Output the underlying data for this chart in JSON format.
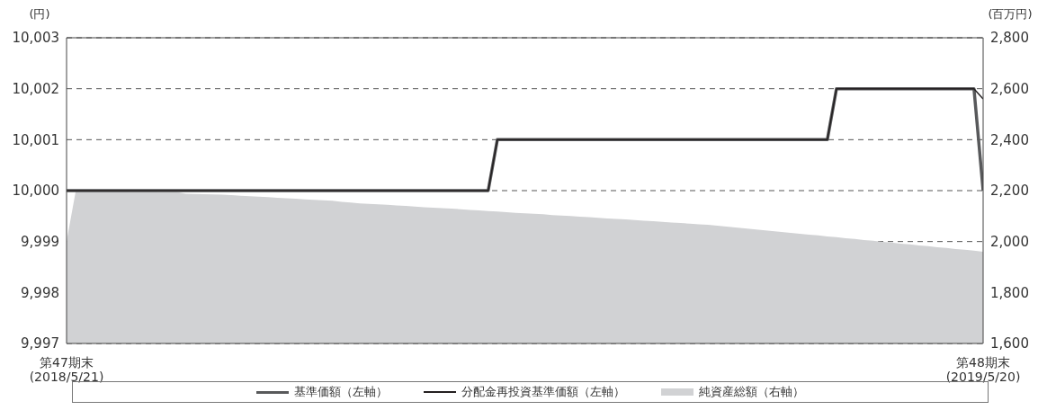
{
  "chart_data": {
    "type": "line",
    "ylabel": "(円)",
    "y2label": "(百万円)",
    "categories": [
      "第47期末\n(2018/5/21)",
      null,
      null,
      null,
      null,
      null,
      null,
      null,
      null,
      null,
      null,
      null,
      null,
      null,
      null,
      null,
      null,
      null,
      null,
      null,
      null,
      null,
      null,
      null,
      null,
      null,
      null,
      null,
      null,
      null,
      null,
      null,
      null,
      null,
      null,
      null,
      null,
      null,
      null,
      null,
      null,
      null,
      null,
      null,
      null,
      null,
      null,
      null,
      null,
      null,
      null,
      null,
      null,
      null,
      null,
      null,
      null,
      null,
      null,
      null,
      null,
      null,
      null,
      null,
      null,
      null,
      null,
      null,
      null,
      null,
      null,
      null,
      null,
      null,
      null,
      null,
      null,
      null,
      null,
      null,
      null,
      null,
      null,
      null,
      null,
      null,
      null,
      null,
      null,
      null,
      null,
      null,
      null,
      null,
      null,
      null,
      null,
      null,
      null,
      null,
      "第48期末\n(2019/5/20)"
    ],
    "series": [
      {
        "name": "純資産総額（右軸）",
        "type": "area",
        "axis": "y2",
        "color": "#d1d2d4",
        "values": [
          2000,
          2198,
          2198,
          2198,
          2197,
          2197,
          2197,
          2196,
          2196,
          2196,
          2195,
          2195,
          2195,
          2188,
          2187,
          2186,
          2185,
          2184,
          2182,
          2180,
          2178,
          2176,
          2174,
          2172,
          2170,
          2168,
          2166,
          2164,
          2162,
          2160,
          2156,
          2153,
          2150,
          2148,
          2146,
          2144,
          2142,
          2140,
          2137,
          2135,
          2133,
          2131,
          2129,
          2127,
          2124,
          2122,
          2120,
          2118,
          2115,
          2113,
          2111,
          2109,
          2107,
          2104,
          2102,
          2100,
          2098,
          2096,
          2093,
          2091,
          2089,
          2087,
          2084,
          2082,
          2080,
          2077,
          2075,
          2073,
          2070,
          2068,
          2066,
          2062,
          2059,
          2055,
          2052,
          2048,
          2045,
          2041,
          2038,
          2034,
          2031,
          2027,
          2024,
          2020,
          2017,
          2013,
          2010,
          2006,
          2003,
          1999,
          1996,
          1992,
          1989,
          1985,
          1982,
          1978,
          1975,
          1971,
          1968,
          1964,
          1960
        ]
      },
      {
        "name": "基準価額（左軸）",
        "type": "line",
        "color": "#58595b",
        "values": [
          10000,
          10000,
          10000,
          10000,
          10000,
          10000,
          10000,
          10000,
          10000,
          10000,
          10000,
          10000,
          10000,
          10000,
          10000,
          10000,
          10000,
          10000,
          10000,
          10000,
          10000,
          10000,
          10000,
          10000,
          10000,
          10000,
          10000,
          10000,
          10000,
          10000,
          10000,
          10000,
          10000,
          10000,
          10000,
          10000,
          10000,
          10000,
          10000,
          10000,
          10000,
          10000,
          10000,
          10000,
          10000,
          10000,
          10000,
          10001,
          10001,
          10001,
          10001,
          10001,
          10001,
          10001,
          10001,
          10001,
          10001,
          10001,
          10001,
          10001,
          10001,
          10001,
          10001,
          10001,
          10001,
          10001,
          10001,
          10001,
          10001,
          10001,
          10001,
          10001,
          10001,
          10001,
          10001,
          10001,
          10001,
          10001,
          10001,
          10001,
          10001,
          10001,
          10001,
          10001,
          10002,
          10002,
          10002,
          10002,
          10002,
          10002,
          10002,
          10002,
          10002,
          10002,
          10002,
          10002,
          10002,
          10002,
          10002,
          10002,
          10000
        ]
      },
      {
        "name": "分配金再投資基準価額（左軸）",
        "type": "line",
        "color": "#231f20",
        "values": [
          10000,
          10000,
          10000,
          10000,
          10000,
          10000,
          10000,
          10000,
          10000,
          10000,
          10000,
          10000,
          10000,
          10000,
          10000,
          10000,
          10000,
          10000,
          10000,
          10000,
          10000,
          10000,
          10000,
          10000,
          10000,
          10000,
          10000,
          10000,
          10000,
          10000,
          10000,
          10000,
          10000,
          10000,
          10000,
          10000,
          10000,
          10000,
          10000,
          10000,
          10000,
          10000,
          10000,
          10000,
          10000,
          10000,
          10000,
          10001,
          10001,
          10001,
          10001,
          10001,
          10001,
          10001,
          10001,
          10001,
          10001,
          10001,
          10001,
          10001,
          10001,
          10001,
          10001,
          10001,
          10001,
          10001,
          10001,
          10001,
          10001,
          10001,
          10001,
          10001,
          10001,
          10001,
          10001,
          10001,
          10001,
          10001,
          10001,
          10001,
          10001,
          10001,
          10001,
          10001,
          10002,
          10002,
          10002,
          10002,
          10002,
          10002,
          10002,
          10002,
          10002,
          10002,
          10002,
          10002,
          10002,
          10002,
          10002,
          10002,
          10001.8
        ]
      }
    ],
    "ylim": [
      9997,
      10003
    ],
    "yticks": [
      {
        "value": 9997,
        "label": "9,997"
      },
      {
        "value": 9998,
        "label": "9,998"
      },
      {
        "value": 9999,
        "label": "9,999"
      },
      {
        "value": 10000,
        "label": "10,000"
      },
      {
        "value": 10001,
        "label": "10,001"
      },
      {
        "value": 10002,
        "label": "10,002"
      },
      {
        "value": 10003,
        "label": "10,003"
      }
    ],
    "y2lim": [
      1600,
      2800
    ],
    "y2ticks": [
      {
        "value": 1600,
        "label": "1,600"
      },
      {
        "value": 1800,
        "label": "1,800"
      },
      {
        "value": 2000,
        "label": "2,000"
      },
      {
        "value": 2200,
        "label": "2,200"
      },
      {
        "value": 2400,
        "label": "2,400"
      },
      {
        "value": 2600,
        "label": "2,600"
      },
      {
        "value": 2800,
        "label": "2,800"
      }
    ],
    "grid": "y",
    "legend": "bottom",
    "marker": "none"
  }
}
